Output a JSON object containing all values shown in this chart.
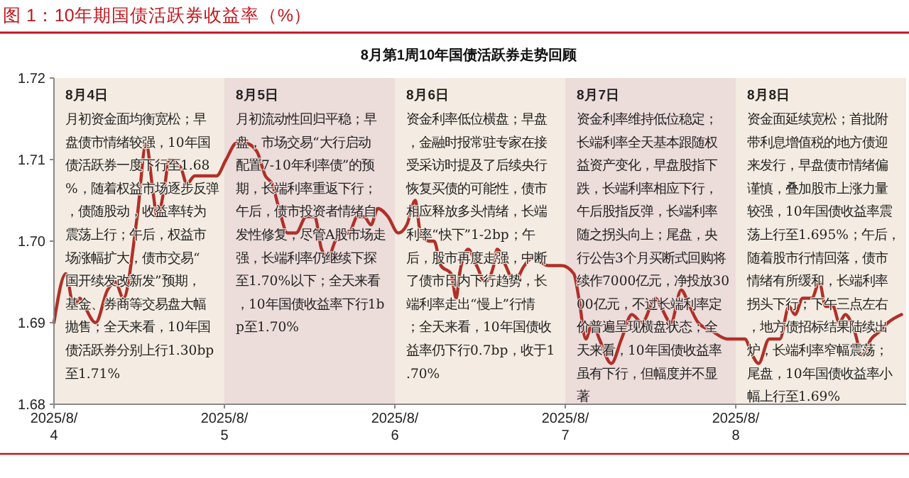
{
  "chart_data": {
    "type": "line",
    "title": "图 1：10年期国债活跃券收益率（%）",
    "subtitle": "8月第1周10年国债活跃券走势回顾",
    "x": [
      "2025-08-04T00:00",
      "2025-08-04T01:40",
      "2025-08-04T02:47",
      "2025-08-04T03:38",
      "2025-08-04T04:19",
      "2025-08-04T05:52",
      "2025-08-04T07:32",
      "2025-08-04T08:39",
      "2025-08-04T09:46",
      "2025-08-04T11:43",
      "2025-08-04T12:59",
      "2025-08-04T13:57",
      "2025-08-04T14:31",
      "2025-08-04T15:38",
      "2025-08-04T16:11",
      "2025-08-04T17:52",
      "2025-08-04T18:42",
      "2025-08-04T19:49",
      "2025-08-04T21:13",
      "2025-08-04T22:53",
      "2025-08-05T00:14",
      "2025-08-05T01:41",
      "2025-08-05T03:00",
      "2025-08-05T04:34",
      "2025-08-05T05:46",
      "2025-08-05T06:43",
      "2025-08-05T07:41",
      "2025-08-05T08:53",
      "2025-08-05T10:05",
      "2025-08-05T11:31",
      "2025-08-05T12:43",
      "2025-08-05T13:41",
      "2025-08-05T14:38",
      "2025-08-05T15:36",
      "2025-08-05T16:34",
      "2025-08-05T17:31",
      "2025-08-05T18:43",
      "2025-08-05T19:41",
      "2025-08-05T20:38",
      "2025-08-05T21:36",
      "2025-08-05T23:02",
      "2025-08-06T00:29",
      "2025-08-06T01:41",
      "2025-08-06T02:53",
      "2025-08-06T03:36",
      "2025-08-06T04:48",
      "2025-08-06T05:31",
      "2025-08-06T06:29",
      "2025-08-06T07:55",
      "2025-08-06T08:38",
      "2025-08-06T09:07",
      "2025-08-06T10:19",
      "2025-08-06T11:31",
      "2025-08-06T12:43",
      "2025-08-06T13:55",
      "2025-08-06T14:24",
      "2025-08-06T15:36",
      "2025-08-06T16:48",
      "2025-08-06T18:14",
      "2025-08-06T19:26",
      "2025-08-06T21:36",
      "2025-08-06T23:31",
      "2025-08-07T01:12",
      "2025-08-07T01:55",
      "2025-08-07T02:53",
      "2025-08-07T03:50",
      "2025-08-07T04:48",
      "2025-08-07T06:29",
      "2025-08-07T07:55",
      "2025-08-07T09:22",
      "2025-08-07T10:48",
      "2025-08-07T12:43",
      "2025-08-07T13:26",
      "2025-08-07T14:53",
      "2025-08-07T16:19",
      "2025-08-07T17:31",
      "2025-08-07T18:43",
      "2025-08-07T20:38",
      "2025-08-07T22:48",
      "2025-08-08T01:17",
      "2025-08-08T02:21",
      "2025-08-08T03:13",
      "2025-08-08T04:43",
      "2025-08-08T06:13",
      "2025-08-08T07:30",
      "2025-08-08T08:21",
      "2025-08-08T09:26",
      "2025-08-08T10:43",
      "2025-08-08T11:47",
      "2025-08-08T12:39",
      "2025-08-08T13:43",
      "2025-08-08T14:34",
      "2025-08-08T15:26",
      "2025-08-08T16:43",
      "2025-08-08T17:47",
      "2025-08-08T19:04",
      "2025-08-08T20:21",
      "2025-08-08T21:26",
      "2025-08-08T23:21"
    ],
    "series": [
      {
        "color": "#b03028",
        "values": [
          1.69,
          1.696,
          1.692,
          1.693,
          1.692,
          1.69,
          1.694,
          1.695,
          1.693,
          1.703,
          1.712,
          1.706,
          1.703,
          1.707,
          1.71,
          1.709,
          1.707,
          1.708,
          1.708,
          1.708,
          1.71,
          1.712,
          1.712,
          1.711,
          1.708,
          1.707,
          1.704,
          1.701,
          1.701,
          1.703,
          1.703,
          1.699,
          1.698,
          1.7,
          1.701,
          1.701,
          1.703,
          1.703,
          1.702,
          1.704,
          1.703,
          1.701,
          1.702,
          1.705,
          1.701,
          1.7,
          1.7,
          1.697,
          1.696,
          1.693,
          1.696,
          1.699,
          1.697,
          1.695,
          1.697,
          1.699,
          1.697,
          1.695,
          1.697,
          1.698,
          1.697,
          1.697,
          1.696,
          1.693,
          1.688,
          1.69,
          1.688,
          1.685,
          1.688,
          1.691,
          1.69,
          1.693,
          1.692,
          1.69,
          1.694,
          1.692,
          1.69,
          1.689,
          1.688,
          1.688,
          1.686,
          1.685,
          1.688,
          1.688,
          1.692,
          1.691,
          1.693,
          1.693,
          1.695,
          1.692,
          1.692,
          1.69,
          1.691,
          1.689,
          1.686,
          1.688,
          1.689,
          1.69,
          1.691
        ]
      }
    ],
    "xlim": [
      "2025-08-04",
      "2025-08-09"
    ],
    "ylim": [
      1.68,
      1.72
    ],
    "xticks": [
      {
        "value": "2025-08-04",
        "label": "2025/8/4"
      },
      {
        "value": "2025-08-05",
        "label": "2025/8/5"
      },
      {
        "value": "2025-08-06",
        "label": "2025/8/6"
      },
      {
        "value": "2025-08-07",
        "label": "2025/8/7"
      },
      {
        "value": "2025-08-08",
        "label": "2025/8/8"
      }
    ],
    "yticks": [
      {
        "value": 1.68,
        "label": "1.68"
      },
      {
        "value": 1.69,
        "label": "1.69"
      },
      {
        "value": 1.7,
        "label": "1.70"
      },
      {
        "value": 1.71,
        "label": "1.71"
      },
      {
        "value": 1.72,
        "label": "1.72"
      }
    ],
    "bands": [
      {
        "axis": "x",
        "from": "2025-08-04",
        "to": "2025-08-05",
        "label": "8月4日",
        "color": "#f4ece2"
      },
      {
        "axis": "x",
        "from": "2025-08-05",
        "to": "2025-08-06",
        "label": "8月5日",
        "color": "#ecdcda"
      },
      {
        "axis": "x",
        "from": "2025-08-06",
        "to": "2025-08-07",
        "label": "8月6日",
        "color": "#f4ece2"
      },
      {
        "axis": "x",
        "from": "2025-08-07",
        "to": "2025-08-08",
        "label": "8月7日",
        "color": "#ecdcda"
      },
      {
        "axis": "x",
        "from": "2025-08-08",
        "to": "2025-08-09",
        "label": "8月8日",
        "color": "#f4ece2"
      }
    ],
    "annotations": [
      "月初资金面均衡宽松；早盘债市情绪较强，10年国债活跃券一度下行至1.68%，随着权益市场逐步反弹，债随股动，收益率转为震荡上行；午后，权益市场涨幅扩大，债市交易“国开续发改新发”预期，基金、券商等交易盘大幅抛售；全天来看，10年国债活跃券分别上行1.30bp至1.71%",
      "月初流动性回归平稳；早盘，市场交易“大行启动配置7-10年利率债”的预期，长端利率重返下行；午后，债市投资者情绪自发性修复，尽管A股市场走强，长端利率仍继续下探至1.70%以下；全天来看，10年国债收益率下行1bp至1.70%",
      "资金利率低位横盘；早盘，金融时报常驻专家在接受采访时提及了后续央行恢复买债的可能性，债市相应释放多头情绪，长端利率“快下”1-2bp；午后，股市再度走强，中断了债市日内下行趋势，长端利率走出“慢上”行情；全天来看，10年国债收益率仍下行0.7bp，收于1.70%",
      "资金利率维持低位稳定；长端利率全天基本跟随权益资产变化，早盘股指下跌，长端利率相应下行，午后股指反弹，长端利率随之拐头向上；尾盘，央行公告3个月买断式回购将续作7000亿元，净投放3000亿元，不过长端利率定价普遍呈现横盘状态；全天来看，10年国债收益率虽有下行，但幅度并不显著",
      "资金面延续宽松；首批附带利息增值税的地方债迎来发行，早盘债市情绪偏谨慎，叠加股市上涨力量较强，10年国债收益率震荡上行至1.695%；午后，随着股市行情回落，债市情绪有所缓和，长端利率拐头下行；下午三点左右，地方债招标结果陆续出炉，长端利率窄幅震荡；尾盘，10年国债收益率小幅上行至1.69%"
    ]
  }
}
